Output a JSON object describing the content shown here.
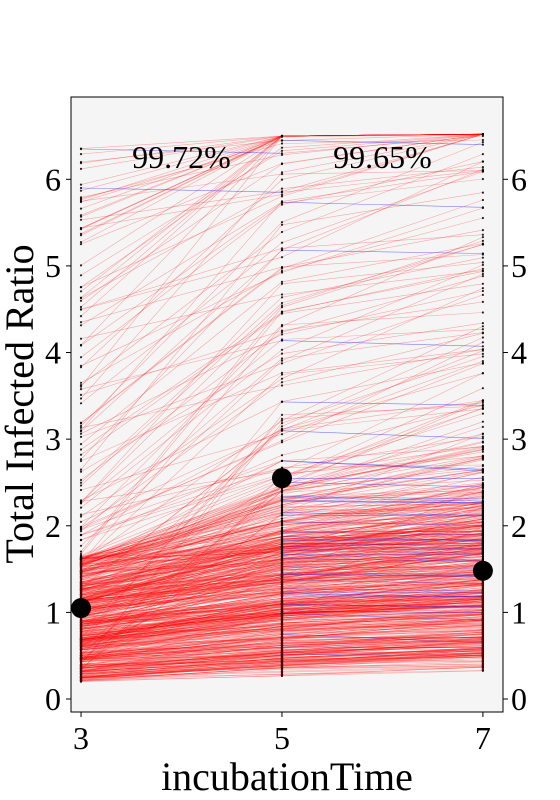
{
  "chart_data": {
    "type": "line",
    "title": "",
    "xlabel": "incubationTime",
    "ylabel": "Total Infected Ratio",
    "x": [
      3,
      5,
      7
    ],
    "x_tick_labels": [
      "3",
      "5",
      "7"
    ],
    "y_ticks": [
      0,
      1,
      2,
      3,
      4,
      5,
      6
    ],
    "y_tick_labels": [
      "0",
      "1",
      "2",
      "3",
      "4",
      "5",
      "6"
    ],
    "xlim": [
      2.9,
      7.2
    ],
    "ylim": [
      -0.15,
      6.95
    ],
    "grid": false,
    "legend": "none",
    "series": [
      {
        "kind": "mean",
        "values": [
          1.05,
          2.55,
          1.48
        ],
        "color": "#000000"
      }
    ],
    "per_sample_lines": {
      "range": [
        0.2,
        6.5
      ],
      "increase_color": "#ff0000",
      "decrease_color": "#0000ff"
    },
    "annotations": [
      {
        "text": "99.72%",
        "between": [
          3,
          5
        ]
      },
      {
        "text": "99.65%",
        "between": [
          5,
          7
        ]
      }
    ]
  },
  "colors": {
    "plot_background": "#f5f5f5",
    "increase_line": "#ff0000",
    "decrease_line": "#0000ff",
    "points": "#000000"
  }
}
